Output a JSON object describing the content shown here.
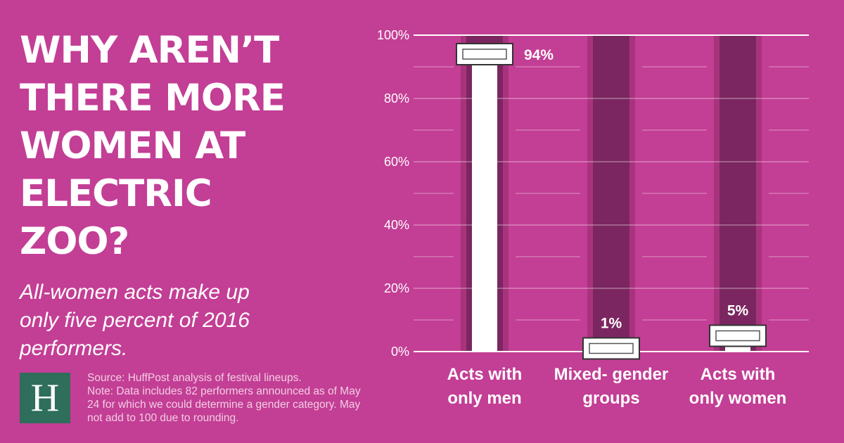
{
  "headline": "WHY AREN’T THERE MORE WOMEN AT ELECTRIC ZOO?",
  "subhead": "All-women acts make up only five percent of 2016 performers.",
  "logo_letter": "H",
  "source": "Source: HuffPost analysis of festival lineups.",
  "note": "Note: Data includes 82 performers announced as of May 24 for which we could determine a gender category. May not add to 100 due to rounding.",
  "colors": {
    "background": "#c33e95",
    "track": "#7b2660",
    "track_edge": "#a8337d",
    "bar": "#ffffff",
    "logo_bg": "#2e6e5a"
  },
  "chart_data": {
    "type": "bar",
    "categories": [
      [
        "Acts with",
        "only men"
      ],
      [
        "Mixed- gender",
        "groups"
      ],
      [
        "Acts with",
        "only women"
      ]
    ],
    "values": [
      94,
      1,
      5
    ],
    "data_labels": [
      "94%",
      "1%",
      "5%"
    ],
    "y_ticks": [
      0,
      20,
      40,
      60,
      80,
      100
    ],
    "y_tick_labels": [
      "0%",
      "20%",
      "40%",
      "60%",
      "80%",
      "100%"
    ],
    "ylim": [
      0,
      100
    ],
    "grid": true,
    "legend": "none"
  }
}
